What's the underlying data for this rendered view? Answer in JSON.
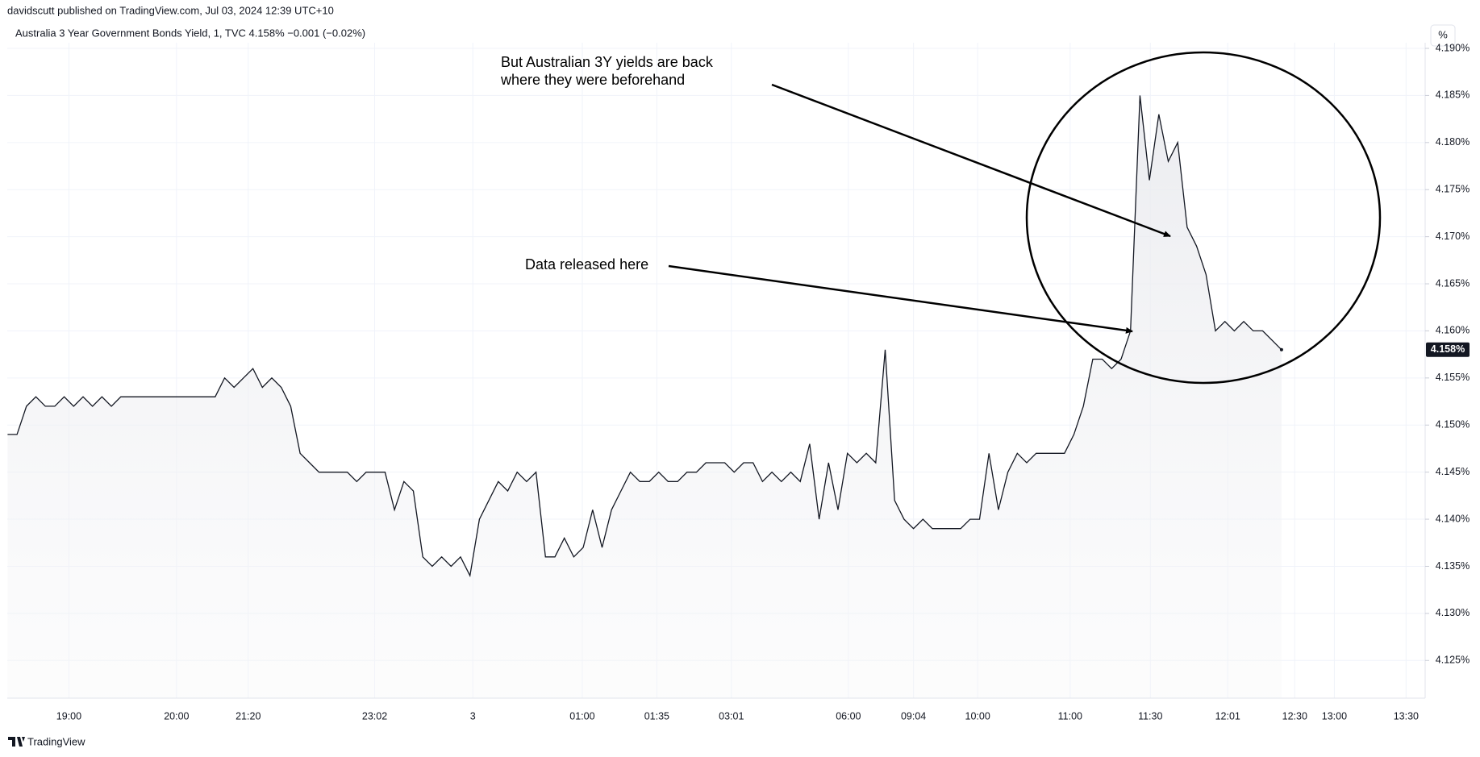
{
  "chart_data": {
    "type": "line",
    "publisher": "davidscutt published on TradingView.com, Jul 03, 2024 12:39 UTC+10",
    "title": "Australia 3 Year Government Bonds Yield, 1, TVC  4.158%  −0.001 (−0.02%)",
    "unit": "%",
    "brand": "TradingView",
    "annotations": [
      "But Australian 3Y yields are back",
      "where they were beforehand",
      "Data released here"
    ],
    "color": "#131722",
    "last_label": "4.158%",
    "values": [
      4.149,
      4.149,
      4.152,
      4.153,
      4.152,
      4.152,
      4.153,
      4.152,
      4.153,
      4.152,
      4.153,
      4.152,
      4.153,
      4.153,
      4.153,
      4.153,
      4.153,
      4.153,
      4.153,
      4.153,
      4.153,
      4.153,
      4.153,
      4.155,
      4.154,
      4.155,
      4.156,
      4.154,
      4.155,
      4.154,
      4.152,
      4.147,
      4.146,
      4.145,
      4.145,
      4.145,
      4.145,
      4.144,
      4.145,
      4.145,
      4.145,
      4.141,
      4.144,
      4.143,
      4.136,
      4.135,
      4.136,
      4.135,
      4.136,
      4.134,
      4.14,
      4.142,
      4.144,
      4.143,
      4.145,
      4.144,
      4.145,
      4.136,
      4.136,
      4.138,
      4.136,
      4.137,
      4.141,
      4.137,
      4.141,
      4.143,
      4.145,
      4.144,
      4.144,
      4.145,
      4.144,
      4.144,
      4.145,
      4.145,
      4.146,
      4.146,
      4.146,
      4.145,
      4.146,
      4.146,
      4.144,
      4.145,
      4.144,
      4.145,
      4.144,
      4.148,
      4.14,
      4.146,
      4.141,
      4.147,
      4.146,
      4.147,
      4.146,
      4.158,
      4.142,
      4.14,
      4.139,
      4.14,
      4.139,
      4.139,
      4.139,
      4.139,
      4.14,
      4.14,
      4.147,
      4.141,
      4.145,
      4.147,
      4.146,
      4.147,
      4.147,
      4.147,
      4.147,
      4.149,
      4.152,
      4.157,
      4.157,
      4.156,
      4.157,
      4.16,
      4.185,
      4.176,
      4.183,
      4.178,
      4.18,
      4.171,
      4.169,
      4.166,
      4.16,
      4.161,
      4.16,
      4.161,
      4.16,
      4.16,
      4.159,
      4.158
    ],
    "xlim": [
      0,
      150
    ],
    "xticks": [
      {
        "value": 6.5,
        "label": "19:00"
      },
      {
        "value": 17.9,
        "label": "20:00"
      },
      {
        "value": 25.5,
        "label": "21:20"
      },
      {
        "value": 38.9,
        "label": "23:02"
      },
      {
        "value": 49.3,
        "label": "3"
      },
      {
        "value": 60.9,
        "label": "01:00"
      },
      {
        "value": 68.8,
        "label": "01:35"
      },
      {
        "value": 76.7,
        "label": "03:01"
      },
      {
        "value": 89.1,
        "label": "06:00"
      },
      {
        "value": 96,
        "label": "09:04"
      },
      {
        "value": 102.8,
        "label": "10:00"
      },
      {
        "value": 112.6,
        "label": "11:00"
      },
      {
        "value": 121.1,
        "label": "11:30"
      },
      {
        "value": 129.3,
        "label": "12:01"
      },
      {
        "value": 136.4,
        "label": "12:30"
      },
      {
        "value": 140.6,
        "label": "13:00"
      },
      {
        "value": 148.2,
        "label": "13:30"
      }
    ],
    "ylim": [
      4.121,
      4.1906
    ],
    "yticks": [
      {
        "value": 4.125,
        "label": "4.125%"
      },
      {
        "value": 4.13,
        "label": "4.130%"
      },
      {
        "value": 4.135,
        "label": "4.135%"
      },
      {
        "value": 4.14,
        "label": "4.140%"
      },
      {
        "value": 4.145,
        "label": "4.145%"
      },
      {
        "value": 4.15,
        "label": "4.150%"
      },
      {
        "value": 4.155,
        "label": "4.155%"
      },
      {
        "value": 4.16,
        "label": "4.160%"
      },
      {
        "value": 4.165,
        "label": "4.165%"
      },
      {
        "value": 4.17,
        "label": "4.170%"
      },
      {
        "value": 4.175,
        "label": "4.175%"
      },
      {
        "value": 4.18,
        "label": "4.180%"
      },
      {
        "value": 4.185,
        "label": "4.185%"
      },
      {
        "value": 4.19,
        "label": "4.190%"
      }
    ],
    "grid": true
  }
}
